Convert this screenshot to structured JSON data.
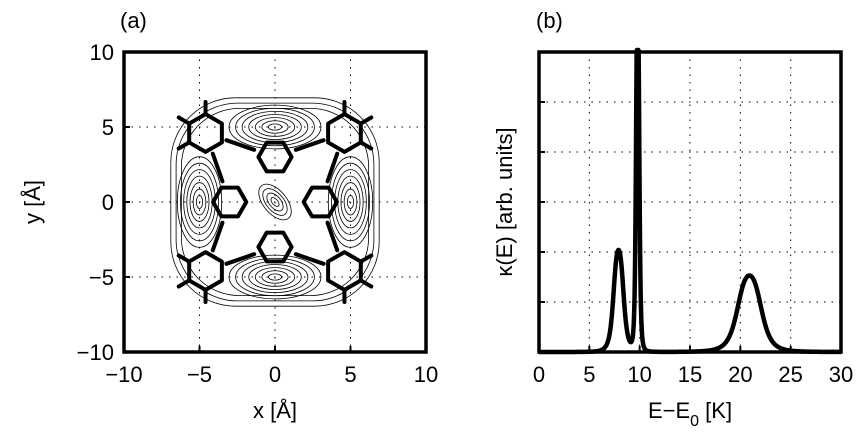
{
  "chart_data": [
    {
      "type": "contour",
      "panel_label": "(a)",
      "xlabel": "x [Å]",
      "ylabel": "y [Å]",
      "xlim": [
        -10,
        10
      ],
      "ylim": [
        -10,
        10
      ],
      "xticks": [
        -10,
        -5,
        0,
        5,
        10
      ],
      "yticks": [
        -10,
        -5,
        0,
        5,
        10
      ],
      "grid": true,
      "contour_peaks": [
        {
          "x": 0,
          "y": 5
        },
        {
          "x": 0,
          "y": -5
        },
        {
          "x": 5,
          "y": 0
        },
        {
          "x": -5,
          "y": 0
        },
        {
          "x": 0,
          "y": 0
        }
      ],
      "molecule_rings": [
        {
          "x": 0,
          "y": 3
        },
        {
          "x": 0,
          "y": -3
        },
        {
          "x": 3,
          "y": 0
        },
        {
          "x": -3,
          "y": 0
        },
        {
          "x": 4.6,
          "y": 4.6
        },
        {
          "x": -4.6,
          "y": 4.6
        },
        {
          "x": 4.6,
          "y": -4.6
        },
        {
          "x": -4.6,
          "y": -4.6
        }
      ]
    },
    {
      "type": "line",
      "panel_label": "(b)",
      "xlabel": "E−E",
      "xlabel_sub": "0",
      "xlabel_unit": " [K]",
      "ylabel": "κ(E) [arb. units]",
      "xlim": [
        0,
        30
      ],
      "xticks": [
        0,
        5,
        10,
        15,
        20,
        25,
        30
      ],
      "ylim": [
        0,
        1
      ],
      "grid": true,
      "peaks": [
        {
          "center": 7.9,
          "width": 0.55,
          "height": 0.34
        },
        {
          "center": 9.8,
          "width": 0.18,
          "height": 1.2
        },
        {
          "center": 20.9,
          "width": 1.3,
          "height": 0.255
        }
      ]
    }
  ]
}
